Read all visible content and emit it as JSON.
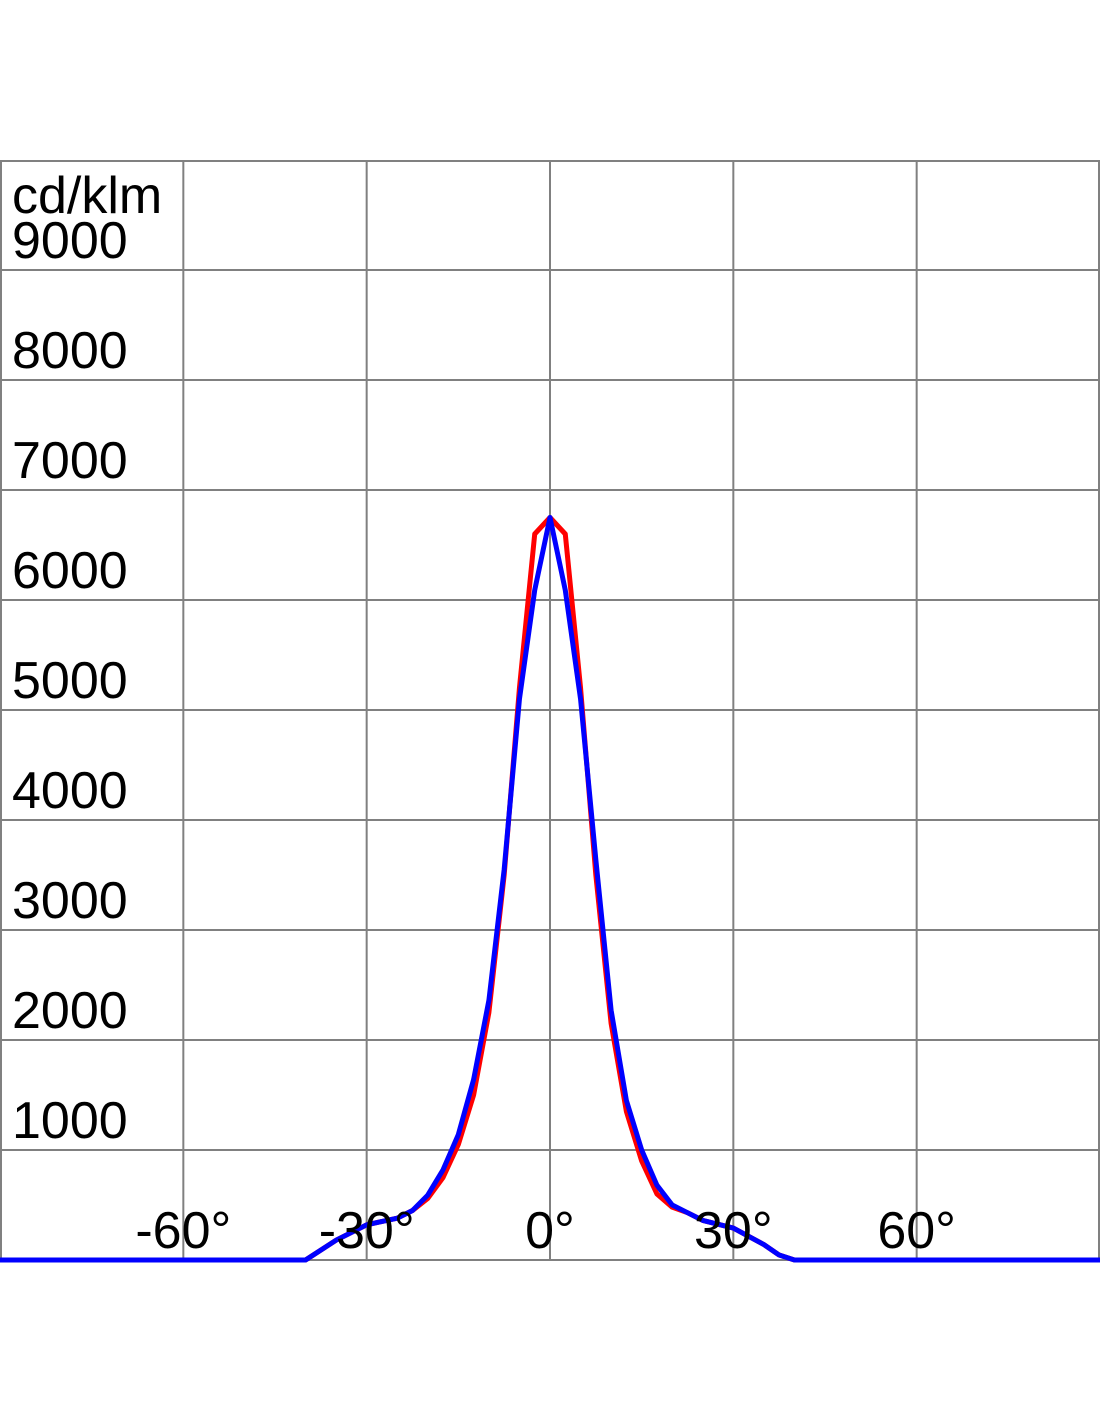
{
  "chart_data": {
    "type": "line",
    "y_unit": "cd/klm",
    "x": [
      -90,
      -60,
      -45,
      -40,
      -35,
      -30,
      -25,
      -22.5,
      -20,
      -17.5,
      -15,
      -12.5,
      -10,
      -7.5,
      -5,
      -2.5,
      0,
      2.5,
      5,
      7.5,
      10,
      12.5,
      15,
      17.5,
      20,
      22.5,
      25,
      30,
      35,
      37.5,
      40,
      45,
      60,
      90
    ],
    "series": [
      {
        "color": "#ff0000",
        "values": [
          0,
          0,
          0,
          0,
          180,
          320,
          380,
          450,
          560,
          750,
          1050,
          1500,
          2250,
          3500,
          5200,
          6600,
          6750,
          6600,
          5200,
          3500,
          2150,
          1350,
          900,
          600,
          480,
          430,
          360,
          290,
          140,
          45,
          0,
          0,
          0,
          0
        ]
      },
      {
        "color": "#0000ff",
        "values": [
          0,
          0,
          0,
          0,
          180,
          320,
          380,
          450,
          590,
          820,
          1140,
          1640,
          2360,
          3550,
          5100,
          6090,
          6750,
          6090,
          5100,
          3640,
          2270,
          1450,
          1000,
          680,
          500,
          430,
          360,
          290,
          140,
          45,
          0,
          0,
          0,
          0
        ]
      }
    ],
    "xlim": [
      -90,
      90
    ],
    "ylim": [
      0,
      10000
    ],
    "xticks": [
      {
        "value": -60,
        "label": "-60°"
      },
      {
        "value": -30,
        "label": "-30°"
      },
      {
        "value": 0,
        "label": "0°"
      },
      {
        "value": 30,
        "label": "30°"
      },
      {
        "value": 60,
        "label": "60°"
      }
    ],
    "yticks": [
      1000,
      2000,
      3000,
      4000,
      5000,
      6000,
      7000,
      8000,
      9000
    ],
    "grid": true
  }
}
